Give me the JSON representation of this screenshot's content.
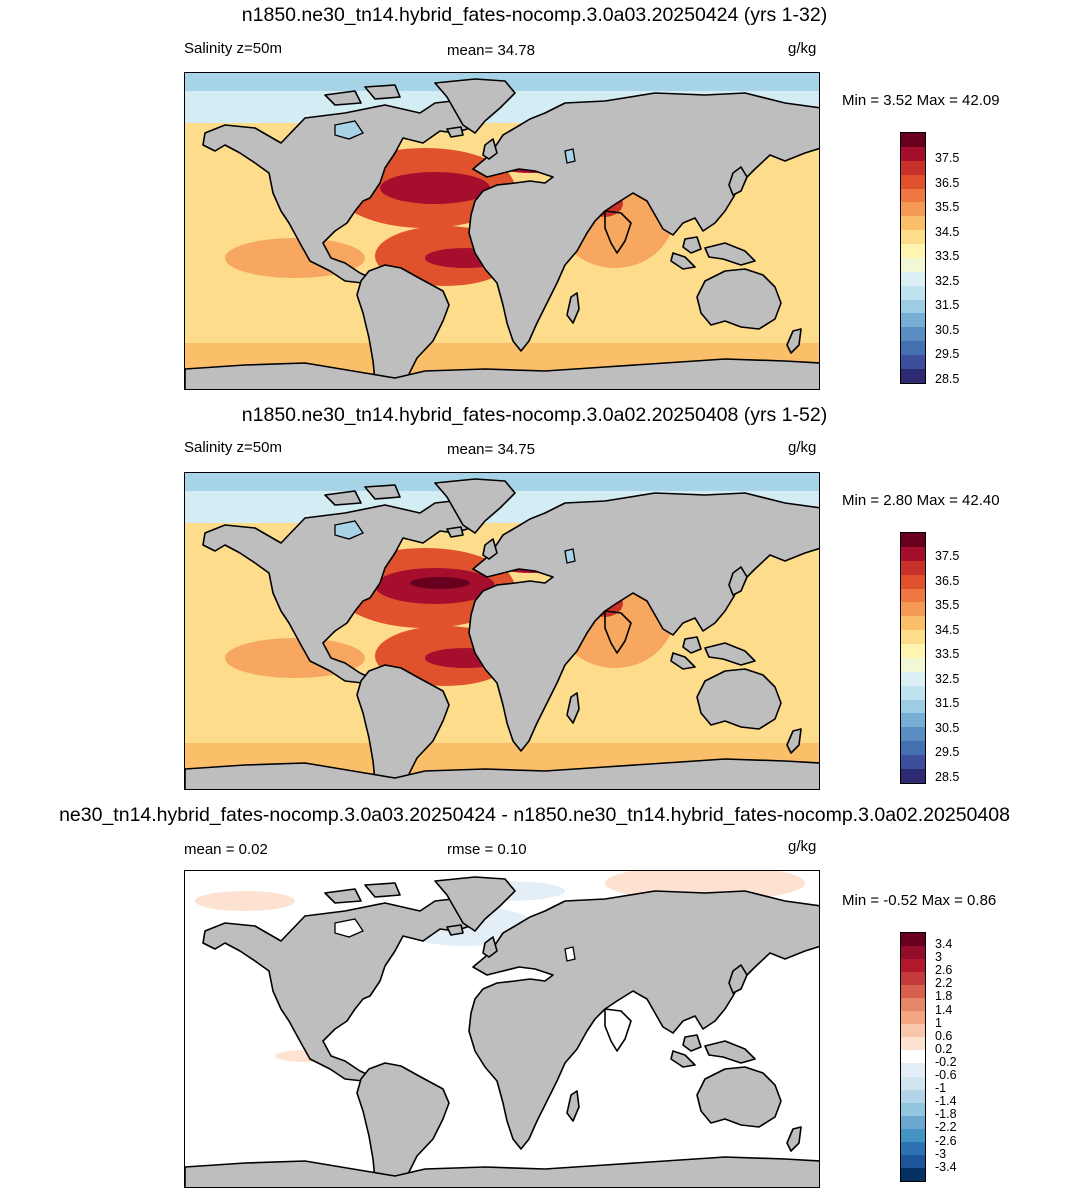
{
  "panels": [
    {
      "title": "n1850.ne30_tn14.hybrid_fates-nocomp.3.0a03.20250424 (yrs 1-32)",
      "left_label": "Salinity z=50m",
      "center_label": "mean=  34.78",
      "units": "g/kg",
      "minmax": "Min =   3.52 Max =  42.09"
    },
    {
      "title": "n1850.ne30_tn14.hybrid_fates-nocomp.3.0a02.20250408 (yrs 1-52)",
      "left_label": "Salinity z=50m",
      "center_label": "mean=  34.75",
      "units": "g/kg",
      "minmax": "Min =   2.80 Max =  42.40"
    },
    {
      "title": "ne30_tn14.hybrid_fates-nocomp.3.0a03.20250424 - n1850.ne30_tn14.hybrid_fates-nocomp.3.0a02.20250408",
      "left_label": "mean =    0.02",
      "center_label": "rmse =    0.10",
      "units": "g/kg",
      "minmax": "Min =  -0.52 Max =   0.86"
    }
  ],
  "colorbar_abs": {
    "labels": [
      "37.5",
      "36.5",
      "35.5",
      "34.5",
      "33.5",
      "32.5",
      "31.5",
      "30.5",
      "29.5",
      "28.5"
    ],
    "colors": [
      "#67001f",
      "#a50f2d",
      "#c8312a",
      "#e0512d",
      "#ee7743",
      "#f59a54",
      "#fbbf6a",
      "#fddd8c",
      "#fff4b0",
      "#f1f8d6",
      "#dcf0f6",
      "#bfe3ef",
      "#9ccde4",
      "#78aed4",
      "#5a8ec3",
      "#4470b1",
      "#3c4e9c",
      "#2e2a71"
    ]
  },
  "colorbar_diff": {
    "labels": [
      "3.4",
      "3",
      "2.6",
      "2.2",
      "1.8",
      "1.4",
      "1",
      "0.6",
      "0.2",
      "-0.2",
      "-0.6",
      "-1",
      "-1.4",
      "-1.8",
      "-2.2",
      "-2.6",
      "-3",
      "-3.4"
    ],
    "colors": [
      "#67001f",
      "#930d2a",
      "#b2182b",
      "#c53b3b",
      "#d6604d",
      "#e48769",
      "#f4a582",
      "#f8c6ab",
      "#fde2d2",
      "#ffffff",
      "#e4eef7",
      "#d1e5f0",
      "#b5d4e9",
      "#92c5de",
      "#6aa8d0",
      "#4393c3",
      "#2d73b4",
      "#1c559a",
      "#053061"
    ]
  },
  "ocean_colors": {
    "fresh_arctic": "#a8d4e8",
    "high_lat": "#d4ecf4",
    "mid": "#fddd8c",
    "warm": "#f59a54",
    "salty": "#e0512d",
    "very_salty": "#a50f2d",
    "extreme": "#67001f",
    "land": "#bebebe"
  }
}
